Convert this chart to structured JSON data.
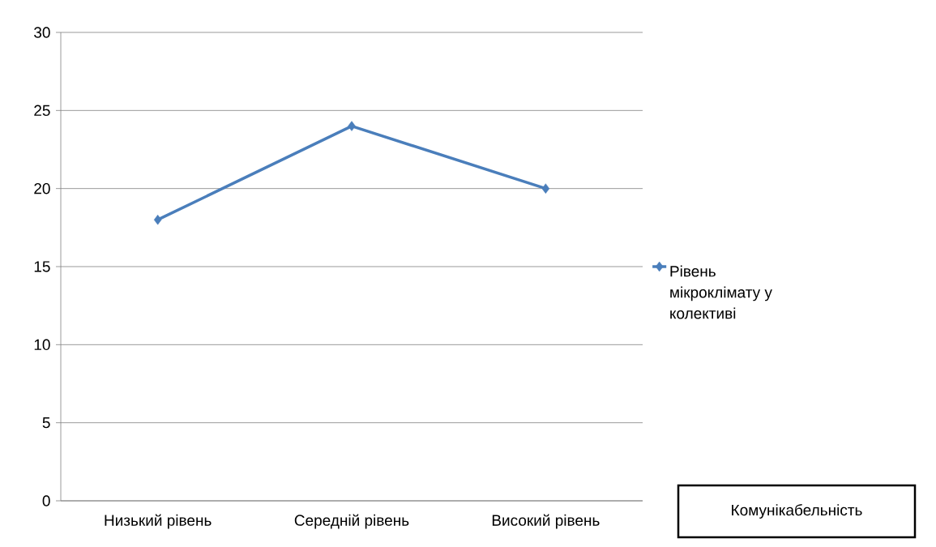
{
  "chart_data": {
    "type": "line",
    "categories": [
      "Низький рівень",
      "Середній рівень",
      "Високий рівень"
    ],
    "series": [
      {
        "name": "Рівень мікроклімату у колективі",
        "color": "#4a7ebb",
        "values": [
          18,
          24,
          20
        ]
      }
    ],
    "ylim": [
      0,
      30
    ],
    "yticks": [
      0,
      5,
      10,
      15,
      20,
      25,
      30
    ],
    "grid": "y",
    "legend": "right",
    "marker": "diamond",
    "annotations": [
      "Комунікабельність"
    ]
  }
}
